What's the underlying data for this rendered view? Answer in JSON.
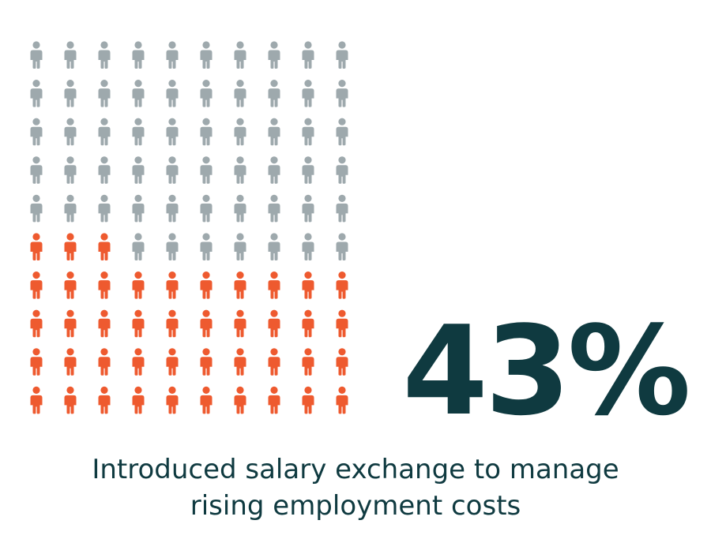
{
  "colors": {
    "highlight": "#ee5a2f",
    "base": "#9ea9ad",
    "text": "#0f3a40"
  },
  "chart_data": {
    "type": "waffle",
    "total": 100,
    "highlighted": 43,
    "rows": 10,
    "columns": 10,
    "icon": "person-icon",
    "fill_order": "bottom-up, row by row left to right",
    "value_label": "43%",
    "caption_lines": [
      "Introduced salary exchange to manage",
      "rising employment costs"
    ]
  }
}
